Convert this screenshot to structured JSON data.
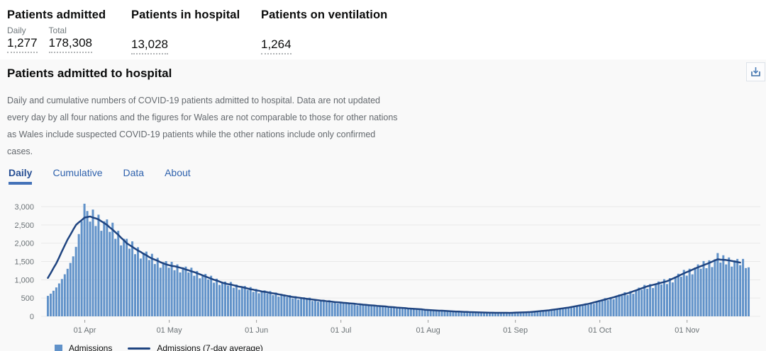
{
  "summary": {
    "cards": [
      {
        "title": "Patients admitted",
        "metrics": [
          {
            "label": "Daily",
            "value": "1,277"
          },
          {
            "label": "Total",
            "value": "178,308"
          }
        ]
      },
      {
        "title": "Patients in hospital",
        "metrics": [
          {
            "label": "",
            "value": "13,028"
          }
        ]
      },
      {
        "title": "Patients on ventilation",
        "metrics": [
          {
            "label": "",
            "value": "1,264"
          }
        ]
      }
    ]
  },
  "section": {
    "title": "Patients admitted to hospital",
    "description": "Daily and cumulative numbers of COVID-19 patients admitted to hospital. Data are not updated every day by all four nations and the figures for Wales are not comparable to those for other nations as Wales include suspected COVID-19 patients while the other nations include only confirmed cases.",
    "download_icon": "download-icon",
    "tabs": [
      {
        "label": "Daily",
        "active": true
      },
      {
        "label": "Cumulative",
        "active": false
      },
      {
        "label": "Data",
        "active": false
      },
      {
        "label": "About",
        "active": false
      }
    ]
  },
  "colors": {
    "bar": "#6192c9",
    "line": "#1f4480",
    "tab_link": "#2f62ad",
    "tab_active_underline": "#4472b8",
    "axis_text": "#6b7276",
    "gridline": "#e9e9e9",
    "card_bg": "#f9f9f9"
  },
  "chart_data": {
    "type": "bar",
    "title": "Patients admitted to hospital (Daily)",
    "xlabel": "",
    "ylabel": "",
    "ylim": [
      0,
      3100
    ],
    "grid": true,
    "legend_position": "bottom-left",
    "legend": [
      "Admissions",
      "Admissions (7-day average)"
    ],
    "y_ticks": [
      0,
      500,
      1000,
      1500,
      2000,
      2500,
      3000
    ],
    "y_tick_labels": [
      "0",
      "500",
      "1,000",
      "1,500",
      "2,000",
      "2,500",
      "3,000"
    ],
    "x_ticks": [
      {
        "label": "01 Apr",
        "day": 13
      },
      {
        "label": "01 May",
        "day": 43
      },
      {
        "label": "01 Jun",
        "day": 74
      },
      {
        "label": "01 Jul",
        "day": 104
      },
      {
        "label": "01 Aug",
        "day": 135
      },
      {
        "label": "01 Sep",
        "day": 166
      },
      {
        "label": "01 Oct",
        "day": 196
      },
      {
        "label": "01 Nov",
        "day": 227
      }
    ],
    "series": [
      {
        "name": "Admissions",
        "type": "bar",
        "color": "#6192c9",
        "values": [
          560,
          620,
          700,
          790,
          900,
          1020,
          1150,
          1300,
          1460,
          1640,
          1900,
          2250,
          2600,
          3080,
          2880,
          2590,
          2920,
          2470,
          2780,
          2340,
          2600,
          2650,
          2310,
          2560,
          2120,
          2340,
          1940,
          2120,
          2120,
          1850,
          2050,
          1700,
          1890,
          1580,
          1740,
          1770,
          1540,
          1710,
          1430,
          1600,
          1330,
          1480,
          1510,
          1330,
          1490,
          1260,
          1420,
          1200,
          1340,
          1360,
          1200,
          1330,
          1110,
          1240,
          1040,
          1140,
          1160,
          1010,
          1110,
          920,
          1030,
          860,
          940,
          950,
          840,
          940,
          780,
          870,
          730,
          820,
          830,
          720,
          800,
          670,
          750,
          630,
          690,
          710,
          630,
          690,
          580,
          650,
          540,
          600,
          600,
          530,
          580,
          490,
          550,
          460,
          510,
          520,
          460,
          510,
          420,
          470,
          400,
          440,
          450,
          390,
          440,
          370,
          410,
          350,
          390,
          390,
          350,
          380,
          320,
          360,
          300,
          340,
          340,
          300,
          330,
          280,
          310,
          260,
          290,
          290,
          260,
          280,
          235,
          265,
          215,
          240,
          245,
          215,
          230,
          195,
          215,
          180,
          200,
          200,
          170,
          190,
          155,
          175,
          145,
          160,
          165,
          140,
          155,
          130,
          140,
          115,
          130,
          130,
          115,
          130,
          105,
          120,
          100,
          110,
          112,
          100,
          110,
          92,
          104,
          88,
          100,
          103,
          91,
          104,
          87,
          103,
          91,
          106,
          112,
          104,
          121,
          106,
          128,
          116,
          139,
          153,
          143,
          171,
          152,
          185,
          167,
          201,
          220,
          208,
          247,
          221,
          267,
          242,
          289,
          315,
          295,
          352,
          313,
          378,
          342,
          408,
          445,
          418,
          497,
          442,
          525,
          468,
          556,
          599,
          561,
          659,
          580,
          688,
          617,
          724,
          784,
          727,
          859,
          754,
          882,
          774,
          898,
          954,
          874,
          1015,
          883,
          1045,
          927,
          1086,
          1166,
          1083,
          1269,
          1113,
          1302,
          1148,
          1336,
          1420,
          1302,
          1512,
          1316,
          1533,
          1346,
          1561,
          1730,
          1470,
          1670,
          1420,
          1610,
          1360,
          1530,
          1570,
          1400,
          1570,
          1320,
          1340
        ]
      },
      {
        "name": "Admissions (7-day average)",
        "type": "line",
        "color": "#1f4480",
        "values": [
          1050,
          1180,
          1320,
          1450,
          1610,
          1780,
          1940,
          2100,
          2230,
          2370,
          2500,
          2570,
          2630,
          2700,
          2715,
          2730,
          2700,
          2680,
          2650,
          2600,
          2550,
          2500,
          2430,
          2370,
          2300,
          2230,
          2150,
          2080,
          2000,
          1950,
          1900,
          1850,
          1800,
          1760,
          1710,
          1670,
          1620,
          1580,
          1550,
          1520,
          1480,
          1450,
          1420,
          1400,
          1380,
          1370,
          1350,
          1330,
          1310,
          1280,
          1260,
          1230,
          1210,
          1180,
          1150,
          1120,
          1090,
          1060,
          1030,
          1000,
          980,
          950,
          920,
          900,
          880,
          870,
          850,
          830,
          810,
          800,
          780,
          760,
          740,
          730,
          710,
          700,
          680,
          670,
          660,
          640,
          630,
          620,
          600,
          590,
          570,
          560,
          540,
          530,
          520,
          510,
          500,
          490,
          480,
          470,
          460,
          450,
          440,
          430,
          425,
          415,
          410,
          400,
          390,
          385,
          380,
          370,
          365,
          355,
          350,
          345,
          335,
          330,
          320,
          315,
          305,
          300,
          295,
          285,
          280,
          275,
          270,
          260,
          255,
          250,
          240,
          235,
          230,
          225,
          215,
          210,
          205,
          200,
          195,
          190,
          180,
          175,
          170,
          165,
          160,
          155,
          155,
          150,
          145,
          140,
          135,
          130,
          130,
          125,
          120,
          120,
          115,
          113,
          111,
          109,
          106,
          104,
          102,
          100,
          99,
          98,
          98,
          97,
          96,
          96,
          95,
          98,
          101,
          104,
          106,
          109,
          112,
          115,
          122,
          129,
          136,
          144,
          151,
          158,
          165,
          176,
          186,
          197,
          208,
          219,
          229,
          240,
          254,
          269,
          283,
          297,
          311,
          326,
          340,
          360,
          380,
          400,
          420,
          440,
          460,
          480,
          500,
          520,
          545,
          565,
          590,
          610,
          630,
          655,
          685,
          710,
          740,
          765,
          795,
          820,
          840,
          860,
          880,
          900,
          920,
          940,
          960,
          995,
          1030,
          1065,
          1100,
          1140,
          1175,
          1210,
          1240,
          1275,
          1310,
          1340,
          1370,
          1400,
          1430,
          1460,
          1495,
          1530,
          1560,
          1550,
          1545,
          1540,
          1530,
          1515,
          1500,
          1485,
          1470
        ]
      }
    ]
  }
}
